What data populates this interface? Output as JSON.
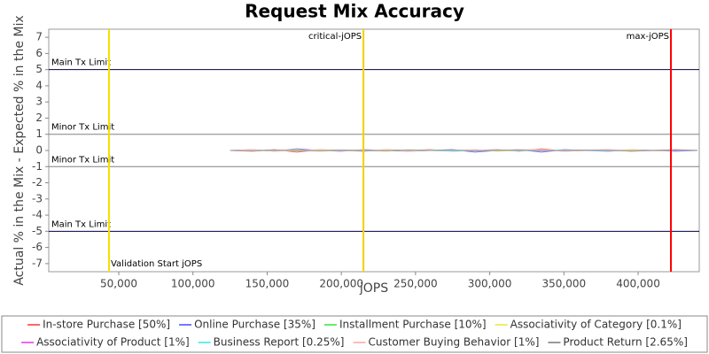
{
  "chart_data": {
    "type": "line",
    "title": "Request Mix Accuracy",
    "x_label": "jOPS",
    "y_label": "Actual % in the Mix - Expected % in the Mix",
    "xlim": [
      2800,
      441200
    ],
    "ylim": [
      -7.5,
      7.5
    ],
    "xticks": [
      {
        "value": 50000,
        "label": "50,000"
      },
      {
        "value": 100000,
        "label": "100,000"
      },
      {
        "value": 150000,
        "label": "150,000"
      },
      {
        "value": 200000,
        "label": "200,000"
      },
      {
        "value": 250000,
        "label": "250,000"
      },
      {
        "value": 300000,
        "label": "300,000"
      },
      {
        "value": 350000,
        "label": "350,000"
      },
      {
        "value": 400000,
        "label": "400,000"
      }
    ],
    "yticks": [
      -7,
      -6,
      -5,
      -4,
      -3,
      -2,
      -1,
      0,
      1,
      2,
      3,
      4,
      5,
      6,
      7
    ],
    "hlines": [
      {
        "value": 5,
        "label": "Main Tx Limit",
        "color": "#000040"
      },
      {
        "value": 1,
        "label": "Minor Tx Limit",
        "color": "#808080"
      },
      {
        "value": -1,
        "label": "Minor Tx Limit",
        "color": "#808080"
      },
      {
        "value": -5,
        "label": "Main Tx Limit",
        "color": "#000040"
      }
    ],
    "vlines": [
      {
        "value": 43400,
        "label": "Validation Start jOPS",
        "color": "#f5e000",
        "label_position": "bottom-right"
      },
      {
        "value": 214900,
        "label": "critical-jOPS",
        "color": "#f5d000",
        "label_position": "top-left"
      },
      {
        "value": 422100,
        "label": "max-jOPS",
        "color": "#ff0000",
        "label_position": "top-left"
      }
    ],
    "x": [
      125000,
      140000,
      155000,
      170000,
      185000,
      200000,
      215000,
      230000,
      245000,
      260000,
      275000,
      290000,
      305000,
      320000,
      335000,
      350000,
      365000,
      380000,
      395000,
      410000,
      425000,
      440000
    ],
    "series": [
      {
        "name": "In-store Purchase [50%]",
        "color": "#ff6666",
        "values": [
          0,
          -0.05,
          0.05,
          -0.1,
          0.05,
          0,
          -0.05,
          0.05,
          0,
          0.05,
          -0.05,
          0,
          0.05,
          -0.05,
          0.1,
          -0.05,
          0,
          0.05,
          -0.05,
          0,
          0.05,
          0
        ]
      },
      {
        "name": "Online Purchase [35%]",
        "color": "#7777ff",
        "values": [
          0,
          0.05,
          -0.05,
          0.1,
          0,
          -0.05,
          0.05,
          0,
          -0.05,
          0,
          0.05,
          -0.1,
          0,
          0.05,
          -0.1,
          0.05,
          0,
          -0.05,
          0.05,
          0,
          -0.05,
          0
        ]
      },
      {
        "name": "Installment Purchase [10%]",
        "color": "#66ee66",
        "values": [
          0,
          0,
          0.02,
          -0.02,
          0,
          0.02,
          0,
          -0.02,
          0,
          0.02,
          0,
          0,
          -0.02,
          0.02,
          0,
          0,
          0.02,
          0,
          -0.02,
          0,
          0,
          0
        ]
      },
      {
        "name": "Associativity of Category [0.1%]",
        "color": "#eeee66",
        "values": [
          0,
          -0.02,
          0,
          0.05,
          -0.05,
          0,
          0.02,
          -0.05,
          0.05,
          0,
          -0.02,
          0.05,
          -0.05,
          0,
          0.05,
          -0.05,
          0.02,
          0,
          0.05,
          -0.02,
          0,
          0
        ]
      },
      {
        "name": "Associativity of Product [1%]",
        "color": "#ee66ee",
        "values": [
          0,
          0,
          0.01,
          0,
          -0.01,
          0,
          0,
          0.01,
          0,
          0,
          -0.01,
          0,
          0,
          0.01,
          0,
          0,
          -0.01,
          0,
          0,
          0.01,
          0,
          0
        ]
      },
      {
        "name": "Business Report [0.25%]",
        "color": "#66eeee",
        "values": [
          0,
          0.02,
          -0.02,
          0,
          0.02,
          0,
          -0.02,
          0,
          0.02,
          0,
          -0.05,
          0,
          0.02,
          -0.02,
          0,
          0.02,
          0,
          -0.02,
          0,
          0,
          0.02,
          0
        ]
      },
      {
        "name": "Customer Buying Behavior [1%]",
        "color": "#ffbbbb",
        "values": [
          0,
          0.05,
          -0.05,
          0,
          0.05,
          -0.02,
          0,
          0.05,
          -0.05,
          0.02,
          0,
          0.05,
          -0.02,
          0.05,
          0.05,
          -0.05,
          0.02,
          0.05,
          0,
          -0.02,
          0,
          0.02
        ]
      },
      {
        "name": "Product Return [2.65%]",
        "color": "#999999",
        "values": [
          0,
          -0.02,
          0.02,
          0,
          -0.02,
          0.02,
          0,
          -0.02,
          0.02,
          0,
          0.02,
          -0.02,
          0,
          0.02,
          -0.02,
          0,
          0.02,
          0,
          -0.02,
          0,
          0.02,
          0
        ]
      }
    ]
  }
}
